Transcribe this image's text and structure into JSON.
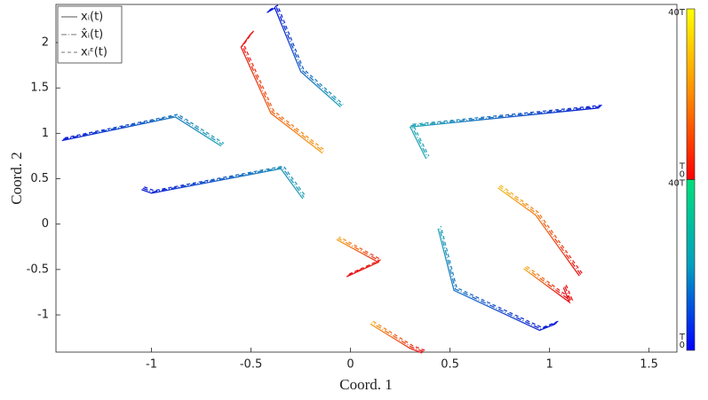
{
  "chart_data": {
    "type": "trajectory",
    "xlabel": "Coord. 1",
    "ylabel": "Coord. 2",
    "xlim": [
      -1.48,
      1.64
    ],
    "ylim": [
      -1.41,
      2.42
    ],
    "xticks": [
      -1,
      -0.5,
      0,
      0.5,
      1,
      1.5
    ],
    "yticks": [
      -1,
      -0.5,
      0,
      0.5,
      1,
      1.5,
      2
    ],
    "legend": "upper left",
    "series": [
      {
        "name": "xᵢ(t)",
        "color": "#555555",
        "dash": "none"
      },
      {
        "name": "x̂ᵢ(t)",
        "color": "#777777",
        "dash": "6 2 1 2"
      },
      {
        "name": "xᵢᵋ(t)",
        "color": "#777777",
        "dash": "4 3"
      }
    ],
    "trajectories": [
      {
        "x": [
          -1.45,
          -0.88,
          -0.65
        ],
        "y": [
          0.92,
          1.18,
          0.86
        ],
        "colors": [
          "#0a1ad6",
          "#2aa8b8"
        ]
      },
      {
        "x": [
          -1.05,
          -1.0,
          -0.35,
          -0.24
        ],
        "y": [
          0.38,
          0.34,
          0.61,
          0.28
        ],
        "colors": [
          "#0a1ad6",
          "#2aa8b8"
        ]
      },
      {
        "x": [
          -0.42,
          -0.38,
          -0.25,
          -0.05
        ],
        "y": [
          2.33,
          2.38,
          1.68,
          1.29
        ],
        "colors": [
          "#0a1ad6",
          "#2aa8b8"
        ]
      },
      {
        "x": [
          1.25,
          0.3,
          0.38
        ],
        "y": [
          1.28,
          1.07,
          0.72
        ],
        "colors": [
          "#0a1ad6",
          "#2aa8b8"
        ]
      },
      {
        "x": [
          1.03,
          0.95,
          0.52,
          0.44
        ],
        "y": [
          -1.1,
          -1.17,
          -0.73,
          -0.05
        ],
        "colors": [
          "#0a1ad6",
          "#2aa8b8"
        ]
      },
      {
        "x": [
          -0.5,
          -0.55,
          -0.4,
          -0.14
        ],
        "y": [
          2.1,
          1.95,
          1.22,
          0.78
        ],
        "colors": [
          "#e8151a",
          "#f5a623"
        ]
      },
      {
        "x": [
          -0.02,
          0.14,
          -0.07
        ],
        "y": [
          -0.58,
          -0.42,
          -0.17
        ],
        "colors": [
          "#e8151a",
          "#f5a623"
        ]
      },
      {
        "x": [
          1.15,
          1.12,
          0.93,
          0.74
        ],
        "y": [
          -0.57,
          -0.48,
          0.1,
          0.4
        ],
        "colors": [
          "#e8151a",
          "#f5c023"
        ]
      },
      {
        "x": [
          1.07,
          1.1,
          0.87
        ],
        "y": [
          -0.7,
          -0.86,
          -0.49
        ],
        "colors": [
          "#e8151a",
          "#f5b023"
        ]
      },
      {
        "x": [
          0.36,
          0.3,
          0.1
        ],
        "y": [
          -1.42,
          -1.37,
          -1.1
        ],
        "colors": [
          "#e8151a",
          "#f5a623"
        ]
      }
    ],
    "colorbar": [
      {
        "colors": [
          "#ffff00",
          "#ff8c00",
          "#ff0000"
        ],
        "labels": [
          "40T",
          "T",
          "0"
        ]
      },
      {
        "colors": [
          "#00e07a",
          "#00a0c0",
          "#0000ff"
        ],
        "labels": [
          "40T",
          "T",
          "0"
        ]
      }
    ]
  }
}
